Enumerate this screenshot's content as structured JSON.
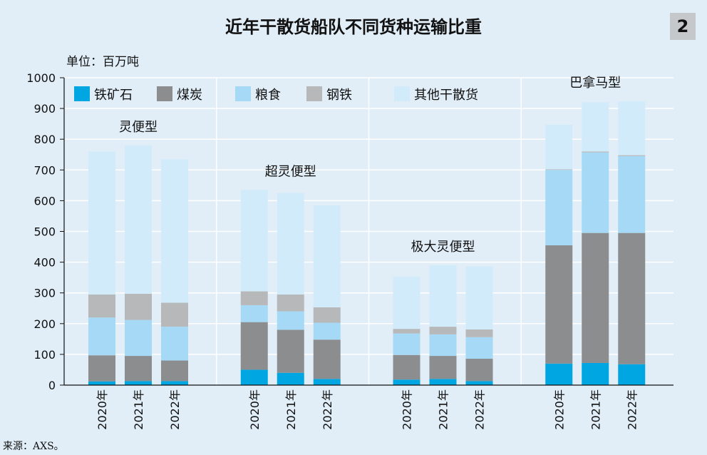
{
  "header": {
    "title": "近年干散货船队不同货种运输比重",
    "badge": "2"
  },
  "unit_label": "单位：百万吨",
  "source": "来源：AXS。",
  "colors": {
    "铁矿石": "#00a6e2",
    "煤炭": "#8c8d8f",
    "粮食": "#a6d9f5",
    "钢铁": "#b7b8ba",
    "其他干散货": "#d2ebfa"
  },
  "chart_data": {
    "type": "bar",
    "stacked": true,
    "ylim": [
      0,
      1000
    ],
    "yticks": [
      0,
      100,
      200,
      300,
      400,
      500,
      600,
      700,
      800,
      900,
      1000
    ],
    "grid": true,
    "legend_position": "top",
    "groups": [
      "灵便型",
      "超灵便型",
      "极大灵便型",
      "巴拿马型"
    ],
    "years": [
      "2020年",
      "2021年",
      "2022年"
    ],
    "series": [
      {
        "name": "铁矿石",
        "values": [
          [
            12,
            13,
            13
          ],
          [
            50,
            40,
            20
          ],
          [
            18,
            20,
            13
          ],
          [
            70,
            72,
            68
          ]
        ]
      },
      {
        "name": "煤炭",
        "values": [
          [
            85,
            82,
            67
          ],
          [
            155,
            140,
            128
          ],
          [
            80,
            75,
            73
          ],
          [
            385,
            423,
            427
          ]
        ]
      },
      {
        "name": "粮食",
        "values": [
          [
            123,
            117,
            110
          ],
          [
            55,
            60,
            55
          ],
          [
            70,
            70,
            70
          ],
          [
            245,
            262,
            250
          ]
        ]
      },
      {
        "name": "钢铁",
        "values": [
          [
            75,
            85,
            78
          ],
          [
            45,
            55,
            50
          ],
          [
            15,
            25,
            25
          ],
          [
            2,
            3,
            3
          ]
        ]
      },
      {
        "name": "其他干散货",
        "values": [
          [
            465,
            483,
            467
          ],
          [
            330,
            330,
            332
          ],
          [
            170,
            200,
            205
          ],
          [
            145,
            160,
            175
          ]
        ]
      }
    ]
  }
}
